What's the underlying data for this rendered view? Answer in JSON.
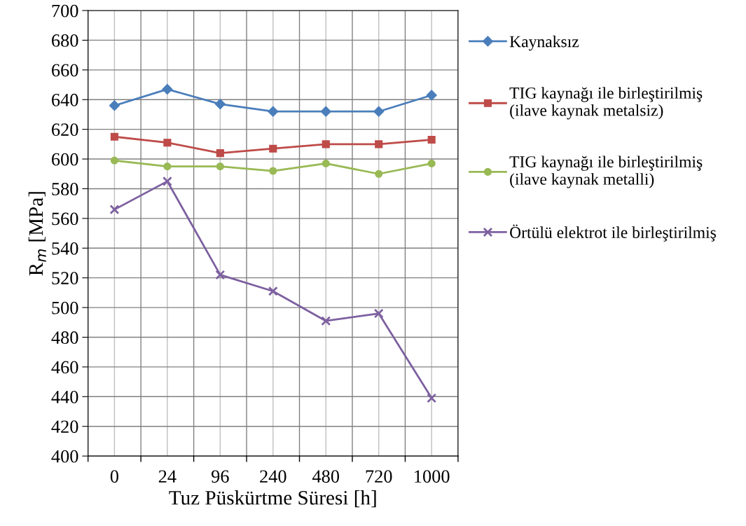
{
  "chart_data": {
    "type": "line",
    "xlabel": "Tuz Püskürtme Süresi [h]",
    "ylabel": "R$_{m}$ [MPa]",
    "categories": [
      "0",
      "24",
      "96",
      "240",
      "480",
      "720",
      "1000"
    ],
    "series": [
      {
        "name": "Kaynaksız",
        "color": "#4a7ebb",
        "marker": "diamond",
        "values": [
          636,
          647,
          637,
          632,
          632,
          632,
          643
        ]
      },
      {
        "name": "TIG kaynağı ile birleştirilmiş\n(ilave kaynak metalsiz)",
        "color": "#be4b48",
        "marker": "square",
        "values": [
          615,
          611,
          604,
          607,
          610,
          610,
          613
        ]
      },
      {
        "name": "TIG kaynağı ile birleştirilmiş\n(ilave kaynak metalli)",
        "color": "#98b954",
        "marker": "circle",
        "values": [
          599,
          595,
          595,
          592,
          597,
          590,
          597
        ]
      },
      {
        "name": "Örtülü elektrot ile birleştirilmiş",
        "color": "#7d60a0",
        "marker": "cross",
        "values": [
          566,
          585,
          522,
          511,
          491,
          496,
          439
        ]
      }
    ],
    "ylim": [
      400,
      700
    ],
    "yticks": [
      400,
      420,
      440,
      460,
      480,
      500,
      520,
      540,
      560,
      580,
      600,
      620,
      640,
      660,
      680,
      700
    ],
    "grid": true,
    "legend": "right",
    "line_style": "solid"
  }
}
